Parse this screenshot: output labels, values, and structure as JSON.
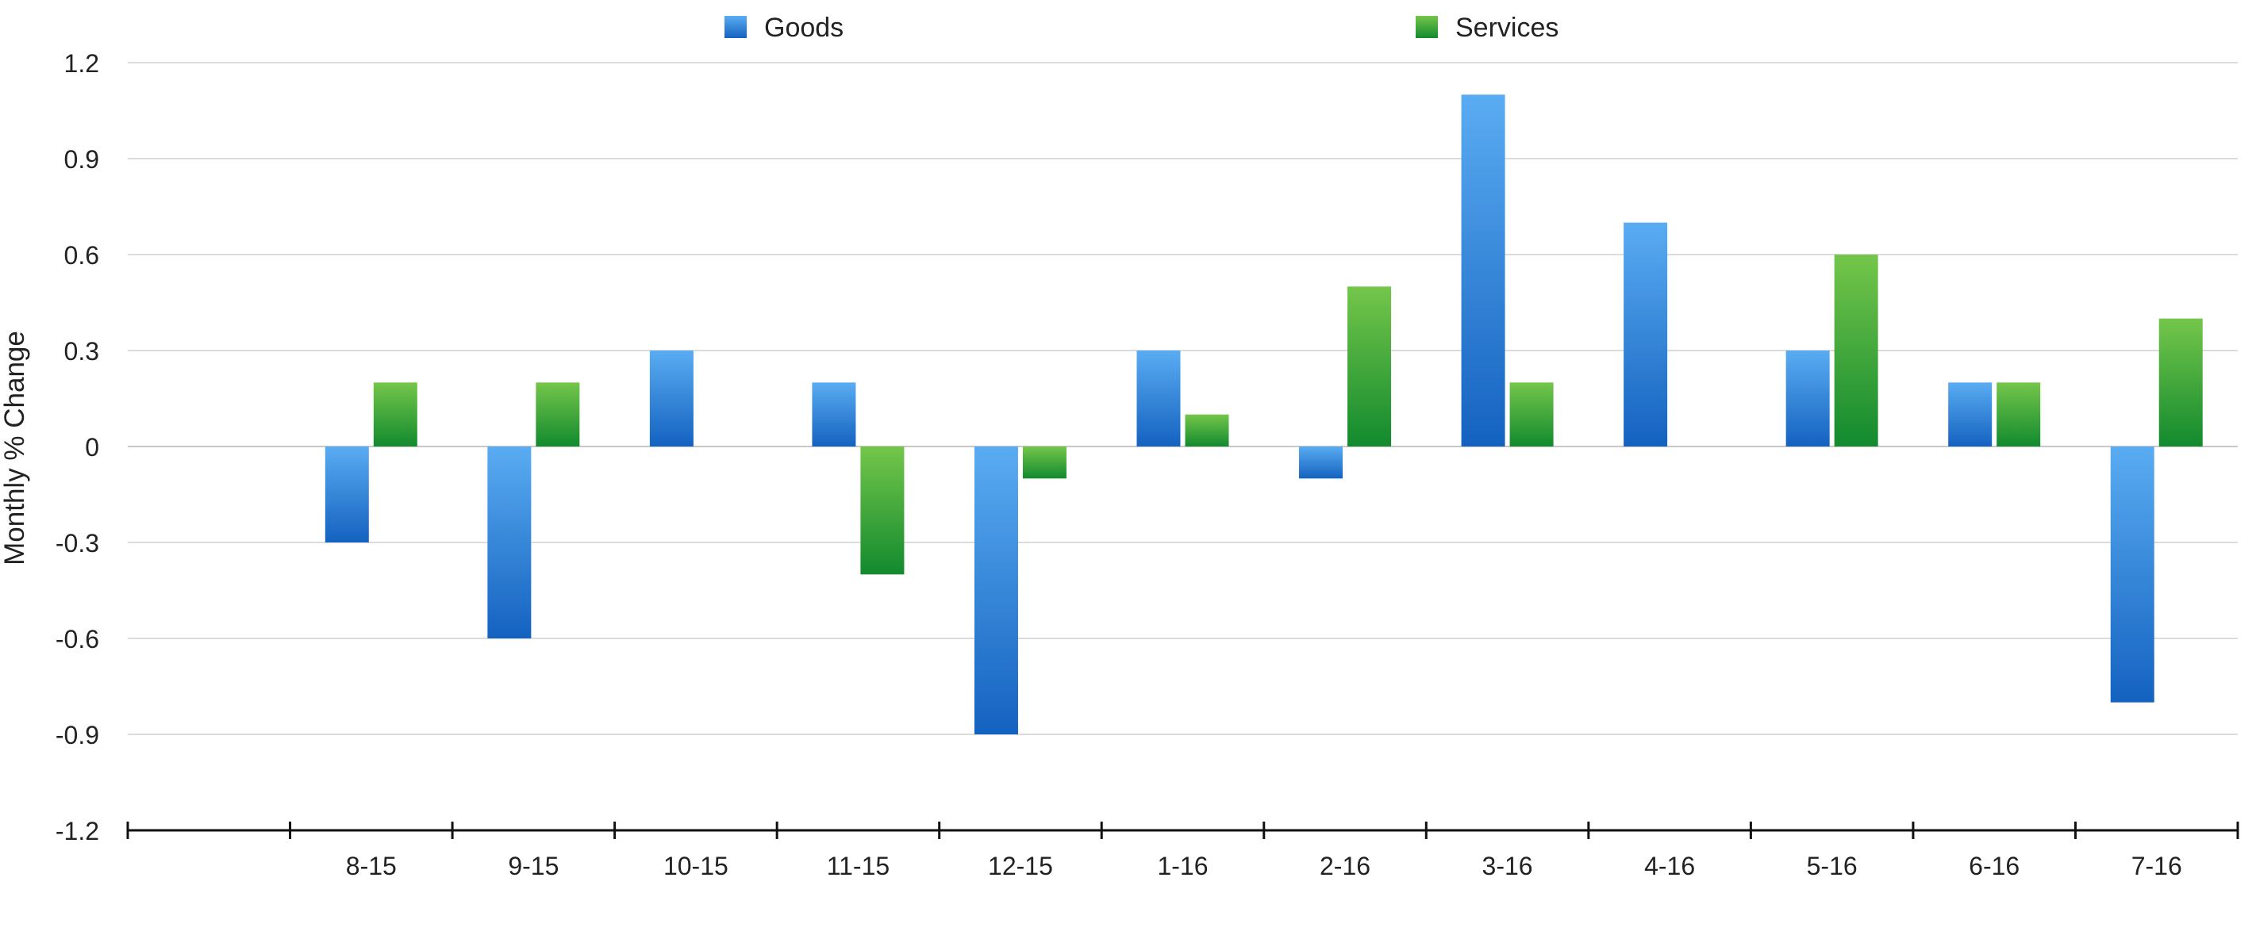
{
  "chart_data": {
    "type": "bar",
    "title": "",
    "xlabel": "",
    "ylabel": "Monthly % Change",
    "ylim": [
      -1.2,
      1.2
    ],
    "yticks": [
      1.2,
      0.9,
      0.6,
      0.3,
      0,
      -0.3,
      -0.6,
      -0.9,
      -1.2
    ],
    "ytick_labels": [
      "1.2",
      "0.9",
      "0.6",
      "0.3",
      "0",
      "-0.3",
      "-0.6",
      "-0.9",
      "-1.2"
    ],
    "grid": true,
    "legend_position": "top",
    "categories": [
      "",
      "8-15",
      "9-15",
      "10-15",
      "11-15",
      "12-15",
      "1-16",
      "2-16",
      "3-16",
      "4-16",
      "5-16",
      "6-16",
      "7-16"
    ],
    "series": [
      {
        "name": "Goods",
        "color_top": "#5aacf2",
        "color_bottom": "#1462c0",
        "values": [
          null,
          -0.3,
          -0.6,
          0.3,
          0.2,
          -0.9,
          0.3,
          -0.1,
          1.1,
          0.7,
          0.3,
          0.2,
          -0.8
        ]
      },
      {
        "name": "Services",
        "color_top": "#74c64a",
        "color_bottom": "#128a2e",
        "values": [
          null,
          0.2,
          0.2,
          0,
          -0.4,
          -0.1,
          0.1,
          0.5,
          0.2,
          0,
          0.6,
          0.2,
          0.4
        ]
      }
    ]
  }
}
